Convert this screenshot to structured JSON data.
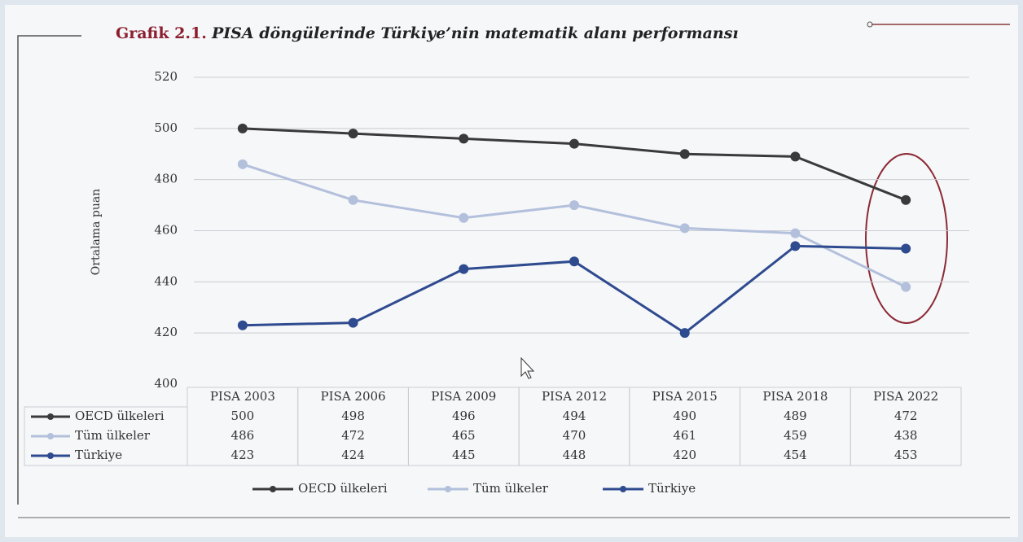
{
  "chart_data": {
    "type": "line",
    "title_label": "Grafik 2.1.",
    "title": "PISA döngülerinde Türkiye’nin matematik alanı performansı",
    "y_label": "Ortalama puan",
    "categories": [
      "PISA 2003",
      "PISA 2006",
      "PISA 2009",
      "PISA 2012",
      "PISA 2015",
      "PISA 2018",
      "PISA 2022"
    ],
    "series": [
      {
        "name": "OECD ülkeleri",
        "color": "#3a3a3c",
        "values": [
          500,
          498,
          496,
          494,
          490,
          489,
          472
        ]
      },
      {
        "name": "Tüm ülkeler",
        "color": "#b3c0dc",
        "values": [
          486,
          472,
          465,
          470,
          461,
          459,
          438
        ]
      },
      {
        "name": "Türkiye",
        "color": "#2f4b8f",
        "values": [
          423,
          424,
          445,
          448,
          420,
          454,
          453
        ]
      }
    ],
    "ylim": [
      400,
      520
    ],
    "yticks": [
      400,
      420,
      440,
      460,
      480,
      500,
      520
    ],
    "grid": true,
    "legend": "bottom"
  }
}
